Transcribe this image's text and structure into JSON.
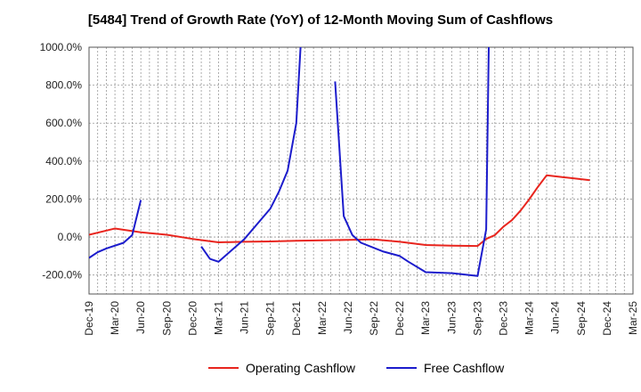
{
  "chart_data": {
    "type": "line",
    "title": "[5484]  Trend of Growth Rate (YoY) of 12-Month Moving Sum of Cashflows",
    "xlabel": "",
    "ylabel": "",
    "x_ticks": [
      "Dec-19",
      "Mar-20",
      "Jun-20",
      "Sep-20",
      "Dec-20",
      "Mar-21",
      "Jun-21",
      "Sep-21",
      "Dec-21",
      "Mar-22",
      "Jun-22",
      "Sep-22",
      "Dec-22",
      "Mar-23",
      "Jun-23",
      "Sep-23",
      "Dec-23",
      "Mar-24",
      "Jun-24",
      "Sep-24",
      "Dec-24",
      "Mar-25"
    ],
    "y_ticks": [
      "-200.0%",
      "0.0%",
      "200.0%",
      "400.0%",
      "600.0%",
      "800.0%",
      "1000.0%"
    ],
    "y_tick_values": [
      -200,
      0,
      200,
      400,
      600,
      800,
      1000
    ],
    "ylim": [
      -300,
      1000
    ],
    "grid": true,
    "legend_position": "bottom",
    "series": [
      {
        "name": "Operating Cashflow",
        "color": "#e8251e",
        "points": [
          [
            0,
            12
          ],
          [
            3,
            45
          ],
          [
            6,
            25
          ],
          [
            9,
            12
          ],
          [
            12,
            -10
          ],
          [
            15,
            -28
          ],
          [
            18,
            -25
          ],
          [
            21,
            -23
          ],
          [
            24,
            -20
          ],
          [
            27,
            -17
          ],
          [
            30,
            -15
          ],
          [
            33,
            -13
          ],
          [
            36,
            -25
          ],
          [
            39,
            -42
          ],
          [
            42,
            -45
          ],
          [
            45,
            -47
          ],
          [
            46,
            -10
          ],
          [
            47,
            10
          ],
          [
            48,
            55
          ],
          [
            49,
            90
          ],
          [
            50,
            140
          ],
          [
            51,
            200
          ],
          [
            52,
            265
          ],
          [
            53,
            325
          ],
          [
            55,
            315
          ],
          [
            57,
            305
          ],
          [
            58,
            300
          ]
        ]
      },
      {
        "name": "Free Cashflow",
        "color": "#1c1ccc",
        "segments": [
          [
            [
              0,
              -110
            ],
            [
              1,
              -80
            ],
            [
              2,
              -60
            ],
            [
              4,
              -30
            ],
            [
              5,
              10
            ],
            [
              6,
              195
            ]
          ],
          [
            [
              13,
              -50
            ],
            [
              14,
              -115
            ],
            [
              15,
              -130
            ],
            [
              18,
              -10
            ],
            [
              21,
              150
            ],
            [
              22,
              240
            ],
            [
              23,
              350
            ],
            [
              24,
              600
            ],
            [
              24.5,
              1000
            ]
          ],
          [
            [
              28.5,
              820
            ],
            [
              29.5,
              110
            ],
            [
              30.5,
              10
            ],
            [
              31.5,
              -30
            ],
            [
              34,
              -75
            ],
            [
              36,
              -100
            ],
            [
              37,
              -130
            ],
            [
              39,
              -185
            ],
            [
              42,
              -190
            ],
            [
              45,
              -205
            ],
            [
              46,
              40
            ],
            [
              46.3,
              1000
            ]
          ]
        ]
      }
    ]
  },
  "legend": {
    "operating_label": "Operating Cashflow",
    "free_label": "Free Cashflow"
  }
}
